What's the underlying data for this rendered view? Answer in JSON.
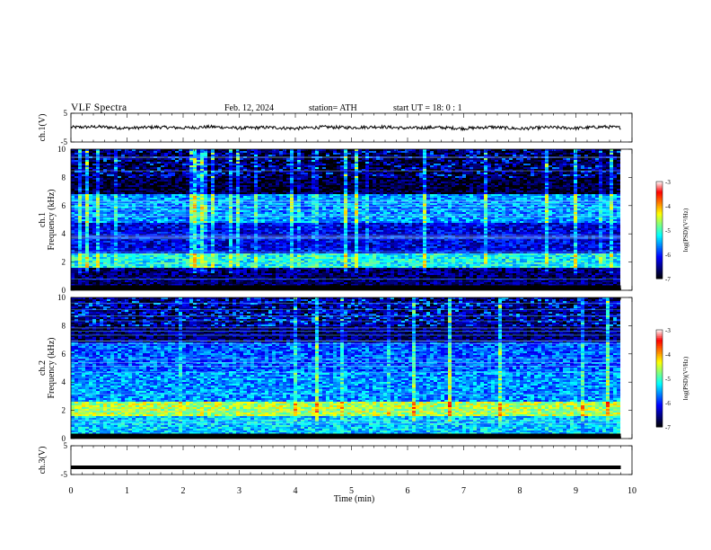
{
  "header": {
    "title": "VLF  Spectra",
    "date": "Feb. 12, 2024",
    "station": "station= ATH",
    "start": "start  UT  =   18: 0   : 1"
  },
  "chart_data": [
    {
      "type": "line",
      "panel": "ch1-waveform",
      "ylabel": "ch.1(V)",
      "ylim": [
        -5,
        5
      ],
      "yticks": [
        "5",
        "-5"
      ],
      "x": [
        0,
        0.5,
        1,
        1.5,
        2,
        2.5,
        3,
        3.5,
        4,
        4.5,
        5,
        5.5,
        6,
        6.5,
        7,
        7.5,
        8,
        8.5,
        9,
        9.5,
        9.8
      ],
      "values": [
        0.1,
        0.3,
        -0.2,
        0.2,
        -0.1,
        0.3,
        -0.2,
        0.1,
        -0.3,
        0.2,
        0.0,
        0.3,
        -0.2,
        0.1,
        -0.3,
        0.2,
        -0.4,
        0.1,
        -0.2,
        0.3,
        0.0
      ],
      "line_color": "#000000"
    },
    {
      "type": "heatmap",
      "panel": "ch1-spectrogram",
      "ylabel_lines": [
        "ch.1",
        "Frequency  (kHz)"
      ],
      "ylim": [
        0,
        10
      ],
      "yticks": [
        "0",
        "2",
        "4",
        "6",
        "8",
        "10"
      ],
      "x_extent_min": 9.8,
      "features": {
        "background_level": -6.2,
        "band_2khz_level": -5.2,
        "upper_band_level": -5.6,
        "low_band_level": -6.6
      },
      "colorbar": {
        "label": "log(PSD)(V²/Hz)",
        "ticks": [
          "-3",
          "-4",
          "-5",
          "-6",
          "-7"
        ],
        "range": [
          -7,
          -3
        ]
      }
    },
    {
      "type": "heatmap",
      "panel": "ch2-spectrogram",
      "ylabel_lines": [
        "ch.2",
        "Frequency  (kHz)"
      ],
      "ylim": [
        0,
        10
      ],
      "yticks": [
        "0",
        "2",
        "4",
        "6",
        "8",
        "10"
      ],
      "x_extent_min": 9.8,
      "features": {
        "background_level": -6.0,
        "band_2khz_level": -4.6,
        "upper_band_level": -5.8,
        "low_band_level": -5.4
      },
      "colorbar": {
        "label": "log(PSD)(V²/Hz)",
        "ticks": [
          "-3",
          "-4",
          "-5",
          "-6",
          "-7"
        ],
        "range": [
          -7,
          -3
        ]
      }
    },
    {
      "type": "line",
      "panel": "ch3-waveform",
      "ylabel": "ch.3(V)",
      "ylim": [
        -5,
        5
      ],
      "yticks": [
        "5",
        "-5"
      ],
      "x": [
        0,
        9.8
      ],
      "values": [
        -2.5,
        -2.5
      ],
      "line_color": "#000000"
    }
  ],
  "xaxis": {
    "label": "Time  (min)",
    "range": [
      0,
      10
    ],
    "ticks": [
      "0",
      "1",
      "2",
      "3",
      "4",
      "5",
      "6",
      "7",
      "8",
      "9",
      "10"
    ]
  },
  "colormap": [
    "#000000",
    "#00007f",
    "#0000ff",
    "#007fff",
    "#00ffff",
    "#7fff7f",
    "#ffff00",
    "#ff7f00",
    "#ff0000",
    "#ffffff"
  ]
}
